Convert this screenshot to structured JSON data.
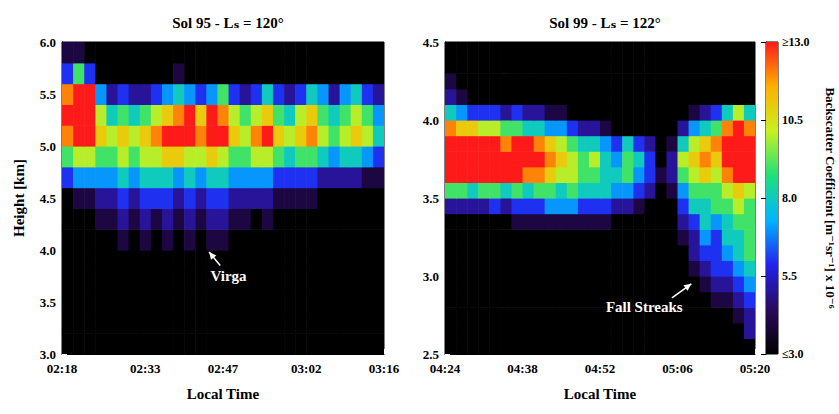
{
  "chart_data": [
    {
      "type": "heatmap",
      "title": "Sol 95 - Lₛ = 120°",
      "x_label": "Local Time",
      "y_label": "Height [km]",
      "xlim": [
        138,
        196
      ],
      "xticks": [
        {
          "value": 138,
          "label": "02:18"
        },
        {
          "value": 153,
          "label": "02:33"
        },
        {
          "value": 167,
          "label": "02:47"
        },
        {
          "value": 182,
          "label": "03:02"
        },
        {
          "value": 196,
          "label": "03:16"
        }
      ],
      "ylim": [
        3.0,
        6.0
      ],
      "yticks": [
        {
          "value": 3,
          "label": "3.0"
        },
        3.5,
        {
          "value": 4,
          "label": "4.0"
        },
        4.5,
        {
          "value": 5,
          "label": "5.0"
        },
        5.5,
        {
          "value": 6,
          "label": "6.0"
        }
      ],
      "x_edges": [
        138,
        140,
        142,
        144,
        146,
        148,
        150,
        152,
        154,
        156,
        158,
        160,
        162,
        164,
        166,
        168,
        170,
        172,
        174,
        176,
        178,
        180,
        182,
        184,
        186,
        188,
        190,
        192,
        194,
        196
      ],
      "y_edges": [
        3.0,
        3.2,
        3.4,
        3.6,
        3.8,
        4.0,
        4.2,
        4.4,
        4.6,
        4.8,
        5.0,
        5.2,
        5.4,
        5.6,
        5.8,
        6.0
      ],
      "cells": [
        [
          2,
          2,
          2,
          2,
          2,
          2,
          2,
          2,
          2,
          2,
          2,
          2,
          2,
          2,
          2,
          2,
          2,
          2,
          2,
          2,
          2,
          2,
          2,
          2,
          2,
          2,
          2,
          2,
          2
        ],
        [
          2,
          2,
          2,
          2,
          2,
          2,
          2,
          2,
          2,
          2,
          2,
          2,
          2,
          2,
          2,
          2,
          2,
          2,
          2,
          2,
          2,
          2,
          2,
          2,
          2,
          2,
          2,
          2,
          2
        ],
        [
          2,
          2,
          2,
          2,
          2,
          2,
          2,
          2,
          2,
          2,
          2,
          2,
          2,
          2,
          2,
          2,
          2,
          2,
          2,
          2,
          2,
          2,
          2,
          2,
          2,
          2,
          2,
          2,
          2
        ],
        [
          2,
          2,
          2,
          2,
          2,
          2,
          2,
          2,
          2,
          2,
          2,
          2,
          2,
          2,
          2,
          2,
          2,
          2,
          2,
          2,
          2,
          2,
          2,
          2,
          2,
          2,
          2,
          2,
          2
        ],
        [
          2,
          2,
          2,
          2,
          2,
          3,
          2,
          2,
          2,
          2,
          2,
          2,
          2,
          3,
          3,
          2,
          2,
          2,
          2,
          2,
          2,
          2,
          2,
          2,
          2,
          2,
          2,
          2,
          2
        ],
        [
          2,
          2,
          2,
          3,
          2,
          4,
          2,
          4,
          2,
          4,
          2,
          4,
          2,
          4,
          4,
          2,
          3,
          2,
          2,
          2,
          2,
          2,
          2,
          2,
          2,
          2,
          2,
          2,
          2
        ],
        [
          2,
          2,
          3,
          4,
          4,
          5,
          4,
          5,
          4,
          5,
          4,
          5,
          4,
          5,
          5,
          4,
          4,
          3,
          4,
          3,
          3,
          3,
          2,
          2,
          2,
          2,
          2,
          2,
          2
        ],
        [
          3,
          4,
          4,
          5,
          5,
          6,
          5,
          6,
          6,
          6,
          5,
          6,
          5,
          6,
          6,
          5,
          5,
          5,
          5,
          4,
          4,
          4,
          4,
          3,
          3,
          3,
          3,
          3,
          3
        ],
        [
          6,
          7,
          7,
          7,
          7,
          8,
          7,
          8,
          8,
          8,
          7,
          8,
          7,
          8,
          8,
          7,
          7,
          7,
          7,
          6,
          6,
          6,
          6,
          5,
          5,
          5,
          5,
          4,
          4
        ],
        [
          9,
          10,
          10,
          9,
          9,
          10,
          9,
          10,
          10,
          11,
          11,
          10,
          10,
          11,
          10,
          9,
          9,
          10,
          10,
          9,
          8,
          9,
          9,
          8,
          7,
          8,
          8,
          7,
          6
        ],
        [
          12,
          13,
          14,
          11,
          10,
          11,
          10,
          11,
          12,
          13,
          13,
          14,
          12,
          14,
          13,
          11,
          10,
          12,
          13,
          11,
          10,
          11,
          12,
          10,
          9,
          10,
          11,
          10,
          8
        ],
        [
          13,
          14,
          14,
          10,
          8,
          9,
          8,
          9,
          10,
          11,
          12,
          13,
          11,
          13,
          12,
          10,
          9,
          10,
          11,
          9,
          8,
          10,
          11,
          9,
          8,
          9,
          10,
          9,
          7
        ],
        [
          12,
          14,
          13,
          7,
          5,
          6,
          5,
          5,
          6,
          7,
          8,
          7,
          6,
          7,
          9,
          6,
          5,
          6,
          8,
          6,
          5,
          6,
          8,
          7,
          5,
          7,
          8,
          6,
          5
        ],
        [
          6,
          9,
          6,
          3,
          3,
          3,
          3,
          3,
          3,
          3,
          4,
          3,
          3,
          3,
          3,
          3,
          3,
          3,
          3,
          3,
          3,
          3,
          3,
          3,
          3,
          3,
          3,
          3,
          3
        ],
        [
          4,
          4,
          3,
          2,
          2,
          2,
          2,
          2,
          2,
          2,
          2,
          2,
          2,
          2,
          2,
          2,
          2,
          2,
          2,
          2,
          2,
          2,
          2,
          2,
          2,
          2,
          2,
          2,
          2
        ]
      ],
      "annotations": [
        {
          "text": "Virga",
          "x": 168,
          "y": 3.75,
          "arrow_from": [
            166.5,
            3.85
          ],
          "arrow_to": [
            164.5,
            3.98
          ]
        }
      ]
    },
    {
      "type": "heatmap",
      "title": "Sol 99 - Lₛ = 122°",
      "x_label": "Local Time",
      "xlim": [
        264,
        320
      ],
      "xticks": [
        {
          "value": 264,
          "label": "04:24"
        },
        {
          "value": 278,
          "label": "04:38"
        },
        {
          "value": 292,
          "label": "04:52"
        },
        {
          "value": 306,
          "label": "05:06"
        },
        {
          "value": 320,
          "label": "05:20"
        }
      ],
      "ylim": [
        2.5,
        4.5
      ],
      "yticks": [
        2.5,
        {
          "value": 3,
          "label": "3.0"
        },
        3.5,
        {
          "value": 4,
          "label": "4.0"
        },
        4.5
      ],
      "x_edges": [
        264,
        266,
        268,
        270,
        272,
        274,
        276,
        278,
        280,
        282,
        284,
        286,
        288,
        290,
        292,
        294,
        296,
        298,
        300,
        302,
        304,
        306,
        308,
        310,
        312,
        314,
        316,
        318,
        320
      ],
      "y_edges": [
        2.5,
        2.6,
        2.7,
        2.8,
        2.9,
        3.0,
        3.1,
        3.2,
        3.3,
        3.4,
        3.5,
        3.6,
        3.7,
        3.8,
        3.9,
        4.0,
        4.1,
        4.2,
        4.3,
        4.4,
        4.5
      ],
      "cells": [
        [
          2,
          2,
          2,
          2,
          2,
          2,
          2,
          2,
          2,
          2,
          2,
          2,
          2,
          2,
          2,
          2,
          2,
          2,
          2,
          2,
          2,
          2,
          2,
          2,
          2,
          2,
          2,
          3
        ],
        [
          2,
          2,
          2,
          2,
          2,
          2,
          2,
          2,
          2,
          2,
          2,
          2,
          2,
          2,
          2,
          2,
          2,
          2,
          2,
          2,
          2,
          2,
          2,
          2,
          2,
          2,
          3,
          5
        ],
        [
          2,
          2,
          2,
          2,
          2,
          2,
          2,
          2,
          2,
          2,
          2,
          2,
          2,
          2,
          2,
          2,
          2,
          2,
          2,
          2,
          2,
          2,
          2,
          2,
          3,
          3,
          4,
          5
        ],
        [
          2,
          2,
          2,
          2,
          2,
          2,
          2,
          2,
          2,
          2,
          2,
          2,
          2,
          2,
          2,
          2,
          2,
          2,
          2,
          2,
          2,
          2,
          2,
          3,
          4,
          4,
          5,
          6
        ],
        [
          2,
          2,
          2,
          2,
          2,
          2,
          2,
          2,
          2,
          2,
          2,
          2,
          2,
          2,
          2,
          2,
          2,
          2,
          2,
          2,
          2,
          2,
          3,
          4,
          5,
          5,
          6,
          7
        ],
        [
          2,
          2,
          2,
          2,
          2,
          2,
          2,
          2,
          2,
          2,
          2,
          2,
          2,
          2,
          2,
          2,
          2,
          2,
          2,
          2,
          2,
          2,
          4,
          5,
          6,
          6,
          7,
          8
        ],
        [
          2,
          2,
          2,
          2,
          2,
          2,
          2,
          2,
          2,
          2,
          2,
          2,
          2,
          2,
          2,
          2,
          2,
          2,
          2,
          2,
          2,
          3,
          5,
          6,
          6,
          7,
          8,
          9
        ],
        [
          2,
          2,
          2,
          2,
          2,
          2,
          2,
          2,
          2,
          2,
          3,
          3,
          3,
          2,
          2,
          2,
          2,
          2,
          2,
          2,
          2,
          4,
          5,
          7,
          6,
          8,
          8,
          9
        ],
        [
          3,
          3,
          3,
          3,
          3,
          3,
          4,
          4,
          4,
          4,
          4,
          4,
          4,
          4,
          4,
          3,
          3,
          3,
          2,
          2,
          2,
          5,
          6,
          8,
          7,
          8,
          9,
          9
        ],
        [
          5,
          5,
          5,
          5,
          6,
          5,
          6,
          6,
          6,
          7,
          7,
          7,
          6,
          6,
          6,
          5,
          5,
          4,
          3,
          2,
          3,
          6,
          8,
          8,
          9,
          9,
          10,
          9
        ],
        [
          9,
          9,
          8,
          9,
          9,
          8,
          9,
          8,
          9,
          9,
          8,
          9,
          8,
          8,
          8,
          7,
          7,
          6,
          5,
          3,
          4,
          7,
          9,
          9,
          9,
          10,
          11,
          10
        ],
        [
          14,
          14,
          13,
          14,
          13,
          13,
          13,
          12,
          12,
          11,
          10,
          10,
          9,
          9,
          8,
          8,
          9,
          7,
          6,
          4,
          5,
          9,
          10,
          11,
          10,
          12,
          13,
          13
        ],
        [
          14,
          14,
          14,
          14,
          14,
          13,
          14,
          14,
          13,
          12,
          11,
          10,
          9,
          10,
          8,
          7,
          9,
          8,
          6,
          3,
          5,
          10,
          11,
          12,
          11,
          13,
          14,
          14
        ],
        [
          14,
          14,
          14,
          13,
          13,
          12,
          13,
          13,
          12,
          11,
          10,
          9,
          8,
          8,
          7,
          6,
          8,
          6,
          5,
          3,
          4,
          8,
          10,
          11,
          12,
          13,
          14,
          14
        ],
        [
          12,
          11,
          11,
          10,
          10,
          9,
          9,
          8,
          8,
          7,
          7,
          6,
          5,
          5,
          4,
          3,
          3,
          3,
          3,
          2,
          3,
          5,
          7,
          8,
          9,
          12,
          14,
          12
        ],
        [
          8,
          7,
          6,
          6,
          6,
          5,
          6,
          5,
          5,
          4,
          4,
          3,
          3,
          3,
          2,
          2,
          2,
          2,
          2,
          2,
          2,
          3,
          4,
          5,
          6,
          8,
          10,
          8
        ],
        [
          5,
          4,
          3,
          3,
          3,
          2,
          2,
          2,
          2,
          2,
          2,
          2,
          2,
          2,
          2,
          2,
          2,
          2,
          2,
          2,
          2,
          2,
          2,
          2,
          2,
          2,
          3,
          2
        ],
        [
          4,
          3,
          2,
          2,
          2,
          2,
          2,
          2,
          2,
          2,
          2,
          2,
          2,
          2,
          2,
          2,
          2,
          2,
          2,
          2,
          2,
          2,
          2,
          2,
          2,
          2,
          2,
          2
        ],
        [
          3,
          2,
          2,
          2,
          2,
          2,
          2,
          2,
          2,
          2,
          2,
          2,
          2,
          2,
          2,
          2,
          2,
          2,
          2,
          2,
          2,
          2,
          2,
          2,
          2,
          2,
          2,
          2
        ],
        [
          2,
          2,
          2,
          2,
          2,
          2,
          2,
          2,
          2,
          2,
          2,
          2,
          2,
          2,
          2,
          2,
          2,
          2,
          2,
          2,
          2,
          2,
          2,
          2,
          2,
          2,
          2,
          2
        ]
      ],
      "annotations": [
        {
          "text": "Fall Streaks",
          "x": 300,
          "y": 2.8,
          "arrow_from": [
            305,
            2.86
          ],
          "arrow_to": [
            308.5,
            2.95
          ]
        }
      ],
      "colorbar": {
        "label": "Backscatter Coefficient [m⁻¹sr⁻¹] x 10⁻⁶",
        "range": [
          3,
          13
        ],
        "ticks": [
          {
            "value": 3,
            "label": "≤3.0"
          },
          5.5,
          {
            "value": 8,
            "label": "8.0"
          },
          10.5,
          {
            "value": 13,
            "label": "≥13.0"
          }
        ],
        "colors": [
          "#000000",
          "#2a0a5e",
          "#2222ee",
          "#00b4ff",
          "#1ee07a",
          "#c8f020",
          "#ffb000",
          "#ff1a1a"
        ]
      }
    }
  ]
}
